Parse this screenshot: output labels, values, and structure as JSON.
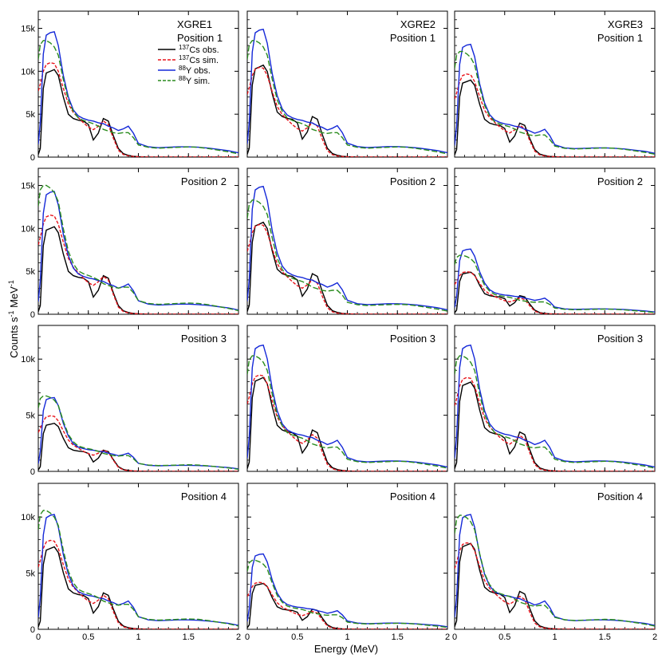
{
  "figure": {
    "ylabel": "Counts s-1 MeV-1",
    "ylabel_parts": {
      "base": "Counts s",
      "exp1": "-1",
      "mid": " MeV",
      "exp2": "-1"
    },
    "xlabel": "Energy (MeV)"
  },
  "detectors": [
    "XGRE1",
    "XGRE2",
    "XGRE3"
  ],
  "positions": [
    "Position 1",
    "Position 2",
    "Position 3",
    "Position 4"
  ],
  "legend": [
    {
      "mass": "137",
      "label": "Cs obs.",
      "color": "#000000",
      "dash": "solid"
    },
    {
      "mass": "137",
      "label": "Cs sim.",
      "color": "#e8141c",
      "dash": "dashed"
    },
    {
      "mass": "88",
      "label": "Y obs.",
      "color": "#1428d8",
      "dash": "solid"
    },
    {
      "mass": "88",
      "label": "Y sim.",
      "color": "#2a8c1e",
      "dash": "dashed"
    }
  ],
  "x_ticks": [
    "0",
    "0.5",
    "1",
    "1.5",
    "2"
  ],
  "y_ticks_rows": [
    [
      "0",
      "5k",
      "10k",
      "15k"
    ],
    [
      "0",
      "5k",
      "10k",
      "15k"
    ],
    [
      "0",
      "5k",
      "10k"
    ],
    [
      "0",
      "5k",
      "10k"
    ]
  ],
  "chart_data": {
    "type": "line",
    "x_values": [
      0.0,
      0.02,
      0.05,
      0.08,
      0.12,
      0.16,
      0.2,
      0.25,
      0.3,
      0.35,
      0.4,
      0.45,
      0.5,
      0.55,
      0.6,
      0.65,
      0.7,
      0.75,
      0.8,
      0.85,
      0.9,
      0.95,
      1.0,
      1.1,
      1.2,
      1.3,
      1.4,
      1.5,
      1.6,
      1.7,
      1.8,
      1.9,
      2.0
    ],
    "xlim": [
      0,
      2
    ],
    "ylim_rows": [
      [
        0,
        17000
      ],
      [
        0,
        17000
      ],
      [
        0,
        13000
      ],
      [
        0,
        13000
      ]
    ],
    "xlabel": "Energy (MeV)",
    "ylabel": "Counts s-1 MeV-1",
    "cs_obs_base": [
      300,
      1000,
      8000,
      9800,
      10000,
      10200,
      9500,
      7000,
      5000,
      4500,
      4300,
      4200,
      3800,
      2000,
      2800,
      4500,
      4200,
      2500,
      1000,
      400,
      200,
      100,
      50,
      0,
      0,
      0,
      0,
      0,
      0,
      0,
      0,
      0,
      0
    ],
    "cs_sim_base": [
      7700,
      8500,
      10000,
      10800,
      11000,
      10900,
      10000,
      8000,
      6200,
      5200,
      4600,
      4000,
      3500,
      3200,
      3600,
      4200,
      3800,
      2200,
      800,
      300,
      150,
      80,
      40,
      0,
      0,
      0,
      0,
      0,
      0,
      0,
      0,
      0,
      0
    ],
    "y_obs_base": [
      1500,
      4000,
      12000,
      14200,
      14500,
      14600,
      13000,
      9500,
      7000,
      5500,
      4800,
      4500,
      4300,
      4200,
      4000,
      3900,
      3600,
      3400,
      3100,
      3300,
      3600,
      2800,
      1600,
      1200,
      1100,
      1150,
      1200,
      1200,
      1150,
      1050,
      900,
      750,
      500
    ],
    "y_sim_base": [
      12000,
      13800,
      14300,
      14300,
      14000,
      13500,
      12500,
      9500,
      7000,
      5600,
      4800,
      4500,
      4300,
      4100,
      3800,
      3400,
      3200,
      3000,
      2900,
      3000,
      3000,
      2400,
      1500,
      1200,
      1100,
      1150,
      1200,
      1250,
      1200,
      1050,
      850,
      650,
      400
    ],
    "panels": [
      {
        "detector": "XGRE1",
        "position": "Position 1",
        "scale": {
          "cs_obs": 1.0,
          "cs_sim": 1.0,
          "y_obs": 1.0,
          "y_sim": 0.95
        }
      },
      {
        "detector": "XGRE2",
        "position": "Position 1",
        "scale": {
          "cs_obs": 1.05,
          "cs_sim": 0.95,
          "y_obs": 1.02,
          "y_sim": 0.95
        }
      },
      {
        "detector": "XGRE3",
        "position": "Position 1",
        "scale": {
          "cs_obs": 0.88,
          "cs_sim": 0.88,
          "y_obs": 0.9,
          "y_sim": 0.86
        }
      },
      {
        "detector": "XGRE1",
        "position": "Position 2",
        "scale": {
          "cs_obs": 1.0,
          "cs_sim": 1.05,
          "y_obs": 0.98,
          "y_sim": 1.05
        }
      },
      {
        "detector": "XGRE2",
        "position": "Position 2",
        "scale": {
          "cs_obs": 1.05,
          "cs_sim": 0.95,
          "y_obs": 1.02,
          "y_sim": 0.93
        }
      },
      {
        "detector": "XGRE3",
        "position": "Position 2",
        "scale": {
          "cs_obs": 0.48,
          "cs_sim": 0.45,
          "y_obs": 0.52,
          "y_sim": 0.48
        }
      },
      {
        "detector": "XGRE1",
        "position": "Position 3",
        "scale": {
          "cs_obs": 0.42,
          "cs_sim": 0.45,
          "y_obs": 0.45,
          "y_sim": 0.47
        }
      },
      {
        "detector": "XGRE2",
        "position": "Position 3",
        "scale": {
          "cs_obs": 0.82,
          "cs_sim": 0.78,
          "y_obs": 0.77,
          "y_sim": 0.72
        }
      },
      {
        "detector": "XGRE3",
        "position": "Position 3",
        "scale": {
          "cs_obs": 0.78,
          "cs_sim": 0.76,
          "y_obs": 0.77,
          "y_sim": 0.72
        }
      },
      {
        "detector": "XGRE1",
        "position": "Position 4",
        "scale": {
          "cs_obs": 0.72,
          "cs_sim": 0.72,
          "y_obs": 0.7,
          "y_sim": 0.74
        }
      },
      {
        "detector": "XGRE2",
        "position": "Position 4",
        "scale": {
          "cs_obs": 0.4,
          "cs_sim": 0.38,
          "y_obs": 0.46,
          "y_sim": 0.43
        }
      },
      {
        "detector": "XGRE3",
        "position": "Position 4",
        "scale": {
          "cs_obs": 0.75,
          "cs_sim": 0.7,
          "y_obs": 0.7,
          "y_sim": 0.71
        }
      }
    ]
  }
}
